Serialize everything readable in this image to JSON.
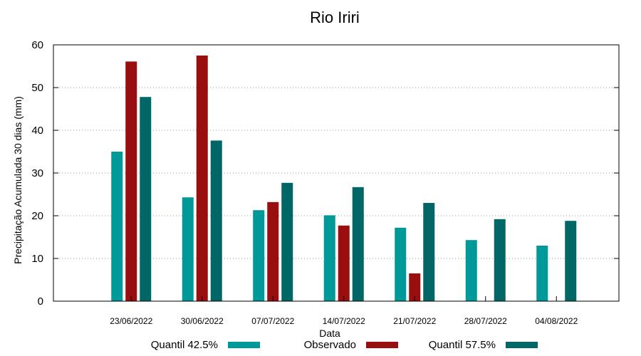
{
  "chart_data": {
    "type": "bar",
    "title": "Rio Iriri",
    "xlabel": "Data",
    "ylabel": "Precipitação Acumulada 30 dias (mm)",
    "ylim": [
      0,
      60
    ],
    "yticks": [
      "0",
      "10",
      "20",
      "30",
      "40",
      "50",
      "60"
    ],
    "categories": [
      "23/06/2022",
      "30/06/2022",
      "07/07/2022",
      "14/07/2022",
      "21/07/2022",
      "28/07/2022",
      "04/08/2022"
    ],
    "grid": true,
    "legend_position": "bottom",
    "series": [
      {
        "name": "Quantil 42.5%",
        "color": "#009999",
        "values": [
          35,
          24.3,
          21.3,
          20.1,
          17.2,
          14.3,
          13
        ]
      },
      {
        "name": "Observado",
        "color": "#990f0f",
        "values": [
          56.1,
          57.5,
          23.2,
          17.7,
          6.5,
          null,
          null
        ]
      },
      {
        "name": "Quantil 57.5%",
        "color": "#006666",
        "values": [
          47.8,
          37.6,
          27.7,
          26.7,
          23,
          19.2,
          18.8
        ]
      }
    ]
  }
}
